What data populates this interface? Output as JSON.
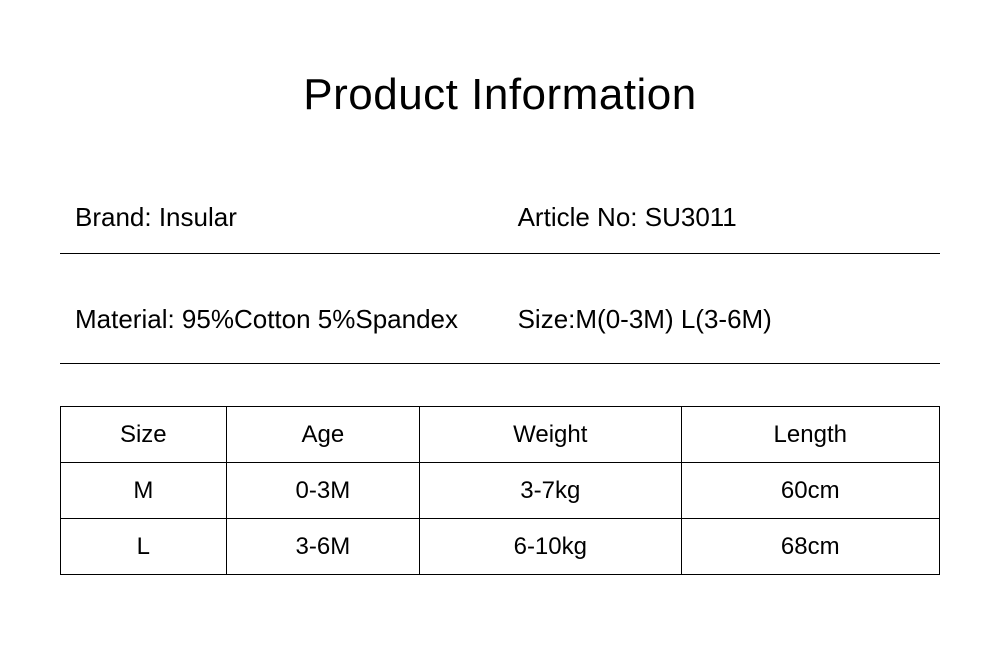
{
  "title": "Product Information",
  "info": {
    "row1": {
      "left": "Brand: Insular",
      "right": "Article No: SU3011"
    },
    "row2": {
      "left": "Material: 95%Cotton 5%Spandex",
      "right": "Size:M(0-3M)  L(3-6M)"
    }
  },
  "table": {
    "columns": [
      "Size",
      "Age",
      "Weight",
      "Length"
    ],
    "rows": [
      [
        "M",
        "0-3M",
        "3-7kg",
        "60cm"
      ],
      [
        "L",
        "3-6M",
        "6-10kg",
        "68cm"
      ]
    ],
    "border_color": "#000000",
    "cell_fontsize": 24,
    "header_fontsize": 24,
    "background_color": "#ffffff",
    "text_color": "#000000"
  },
  "typography": {
    "title_fontsize": 44,
    "info_fontsize": 26,
    "font_family": "sans-serif"
  },
  "colors": {
    "background": "#ffffff",
    "text": "#000000",
    "border": "#000000"
  }
}
